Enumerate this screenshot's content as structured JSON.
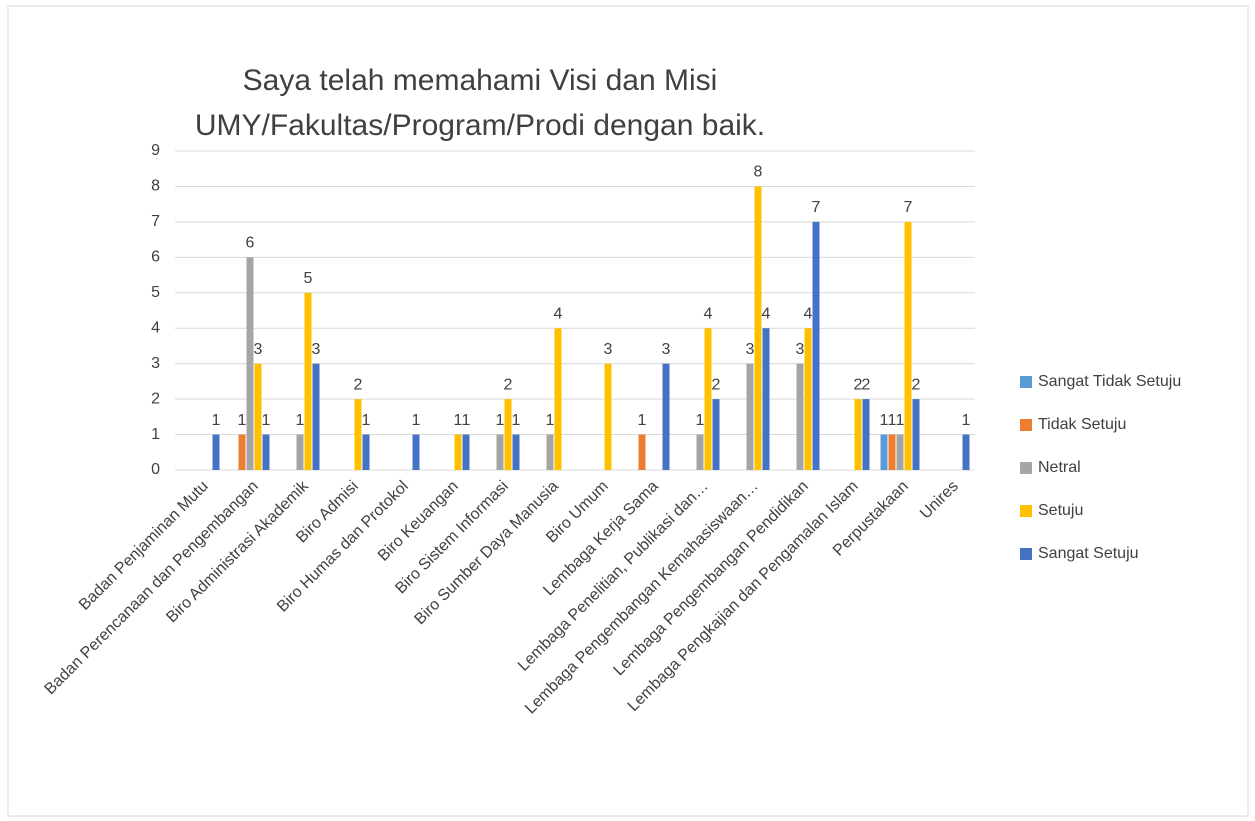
{
  "chart_data": {
    "type": "bar",
    "title": [
      "Saya telah memahami Visi dan Misi",
      "UMY/Fakultas/Program/Prodi dengan baik."
    ],
    "categories": [
      "Badan Penjaminan Mutu",
      "Badan Perencanaan dan Pengembangan",
      "Biro Administrasi Akademik",
      "Biro Admisi",
      "Biro Humas dan Protokol",
      "Biro Keuangan",
      "Biro Sistem Informasi",
      "Biro Sumber Daya Manusia",
      "Biro Umum",
      "Lembaga Kerja Sama",
      "Lembaga Penelitian, Publikasi dan…",
      "Lembaga Pengembangan Kemahasiswaan…",
      "Lembaga Pengembangan Pendidikan",
      "Lembaga Pengkajian dan Pengamalan Islam",
      "Perpustakaan",
      "Unires"
    ],
    "series": [
      {
        "name": "Sangat Tidak Setuju",
        "color": "#5b9bd5",
        "values": [
          null,
          null,
          null,
          null,
          null,
          null,
          null,
          null,
          null,
          null,
          null,
          null,
          null,
          null,
          1,
          null
        ]
      },
      {
        "name": "Tidak Setuju",
        "color": "#ed7d31",
        "values": [
          null,
          1,
          null,
          null,
          null,
          null,
          null,
          null,
          null,
          1,
          null,
          null,
          null,
          null,
          1,
          null
        ]
      },
      {
        "name": "Netral",
        "color": "#a5a5a5",
        "values": [
          null,
          6,
          1,
          null,
          null,
          null,
          1,
          1,
          null,
          null,
          1,
          3,
          3,
          null,
          1,
          null
        ]
      },
      {
        "name": "Setuju",
        "color": "#ffc000",
        "values": [
          null,
          3,
          5,
          2,
          null,
          1,
          2,
          4,
          3,
          null,
          4,
          8,
          4,
          2,
          7,
          null
        ]
      },
      {
        "name": "Sangat Setuju",
        "color": "#4472c4",
        "values": [
          1,
          1,
          3,
          1,
          1,
          1,
          1,
          null,
          null,
          3,
          2,
          4,
          7,
          2,
          2,
          1
        ]
      }
    ],
    "ylim": [
      0,
      9
    ],
    "yticks": [
      0,
      1,
      2,
      3,
      4,
      5,
      6,
      7,
      8,
      9
    ],
    "grid": true,
    "legend": "right"
  }
}
